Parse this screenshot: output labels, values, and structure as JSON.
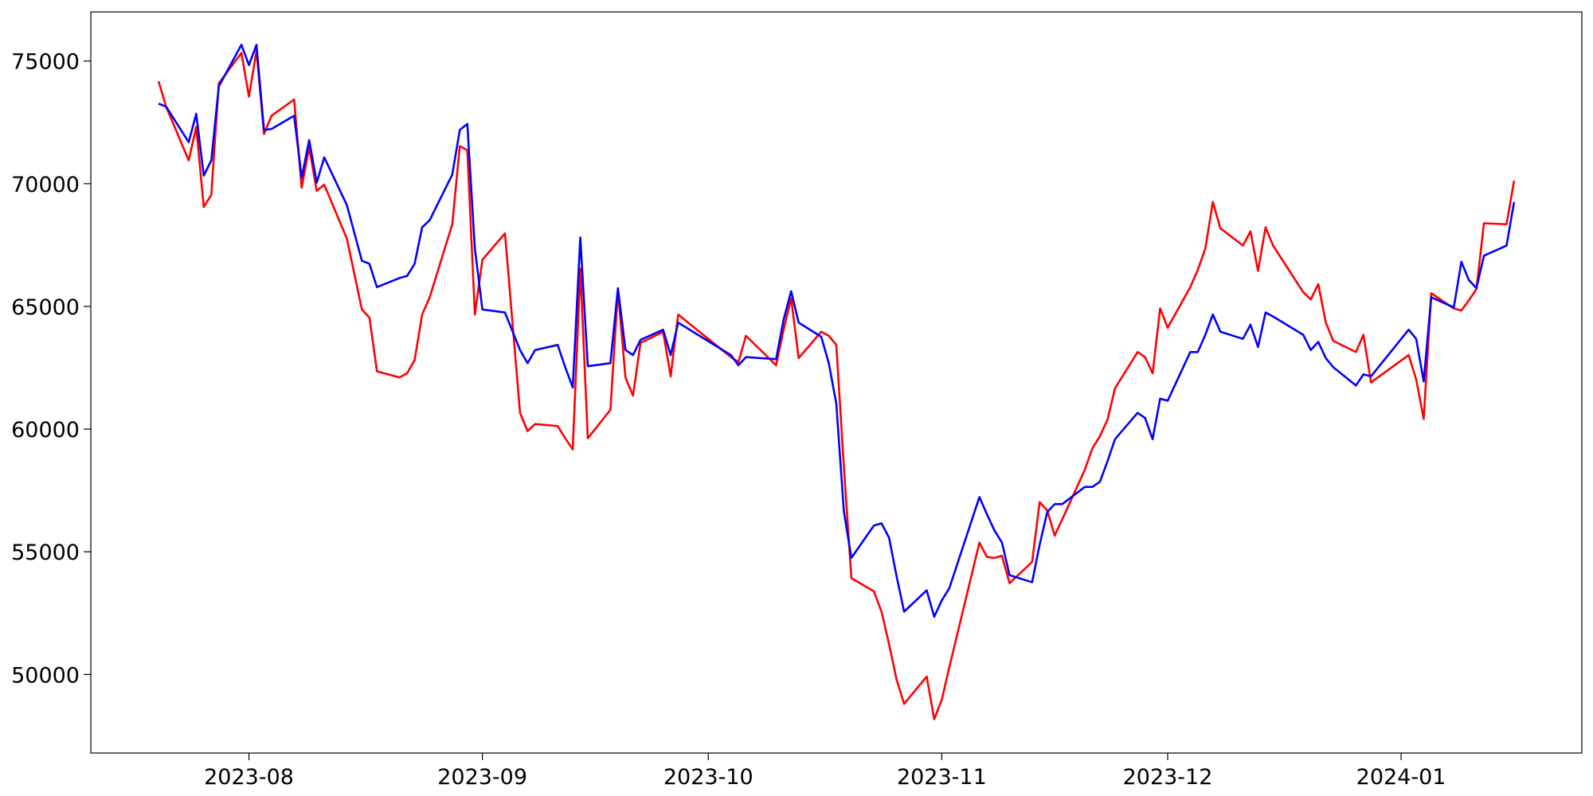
{
  "chart_data": {
    "type": "line",
    "x": [
      -12,
      -11,
      -8,
      -7,
      -6,
      -5,
      -4,
      -1,
      0,
      1,
      2,
      3,
      6,
      7,
      8,
      9,
      10,
      13,
      15,
      16,
      17,
      20,
      21,
      22,
      23,
      24,
      27,
      28,
      29,
      30,
      31,
      34,
      36,
      37,
      38,
      41,
      42,
      43,
      44,
      45,
      48,
      49,
      50,
      51,
      52,
      55,
      56,
      57,
      64,
      65,
      66,
      70,
      71,
      72,
      73,
      76,
      77,
      78,
      79,
      80,
      83,
      84,
      85,
      86,
      87,
      90,
      91,
      92,
      93,
      97,
      98,
      99,
      100,
      101,
      104,
      105,
      106,
      107,
      108,
      111,
      112,
      113,
      114,
      115,
      118,
      119,
      120,
      121,
      122,
      125,
      126,
      127,
      128,
      129,
      132,
      133,
      134,
      135,
      136,
      140,
      141,
      142,
      143,
      144,
      147,
      148,
      149,
      154,
      155,
      156,
      157,
      160,
      161,
      162,
      163,
      164,
      167,
      168
    ],
    "series": [
      {
        "color": "#ff0000",
        "values": [
          74174,
          73140,
          70950,
          72314,
          69050,
          69545,
          74090,
          75330,
          73554,
          75413,
          72025,
          72769,
          73430,
          69835,
          71488,
          69711,
          69959,
          67769,
          64876,
          64545,
          62355,
          62107,
          62273,
          62810,
          64669,
          65372,
          68347,
          71529,
          71364,
          64669,
          66901,
          67975,
          60661,
          59917,
          60207,
          60124,
          59628,
          59174,
          66529,
          59628,
          60785,
          65661,
          62107,
          61364,
          63512,
          63967,
          62149,
          64669,
          62934,
          62727,
          63802,
          62603,
          64050,
          65331,
          62893,
          63967,
          63802,
          63430,
          58471,
          53926,
          53388,
          52562,
          51240,
          49793,
          48802,
          49917,
          48182,
          48967,
          50289,
          55372,
          54793,
          54752,
          54835,
          53719,
          54587,
          57025,
          56694,
          55661,
          56322,
          58347,
          59215,
          59711,
          60372,
          61653,
          63140,
          62934,
          62273,
          64917,
          64132,
          65785,
          66488,
          67355,
          69256,
          68182,
          67479,
          68058,
          66446,
          68223,
          67479,
          65579,
          65289,
          65909,
          64339,
          63595,
          63140,
          63843,
          61901,
          63017,
          62025,
          60413,
          65537,
          64917,
          64835,
          65248,
          65702,
          68388,
          68347,
          70124
        ]
      },
      {
        "color": "#0000ff",
        "values": [
          73264,
          73140,
          71694,
          72850,
          70330,
          70950,
          73967,
          75661,
          74835,
          75661,
          72190,
          72231,
          72769,
          70248,
          71777,
          70041,
          71074,
          69132,
          66860,
          66736,
          65785,
          66157,
          66240,
          66736,
          68223,
          68512,
          70372,
          72190,
          72438,
          67355,
          64876,
          64752,
          63223,
          62686,
          63223,
          63430,
          62521,
          61694,
          67810,
          62562,
          62686,
          65744,
          63223,
          63017,
          63636,
          64050,
          63017,
          64339,
          63017,
          62603,
          62934,
          62851,
          64463,
          65620,
          64339,
          63760,
          62686,
          61033,
          56653,
          54752,
          56074,
          56157,
          55579,
          54008,
          52562,
          53430,
          52355,
          53017,
          53512,
          57231,
          56529,
          55868,
          55372,
          54050,
          53760,
          55289,
          56612,
          56942,
          56942,
          57645,
          57645,
          57851,
          58678,
          59587,
          60661,
          60455,
          59587,
          61240,
          61157,
          63140,
          63140,
          63843,
          64669,
          63967,
          63678,
          64256,
          63347,
          64752,
          64587,
          63843,
          63223,
          63554,
          62893,
          62521,
          61777,
          62231,
          62149,
          64050,
          63678,
          61942,
          65372,
          64959,
          66818,
          66074,
          65744,
          67066,
          67479,
          69256
        ]
      }
    ],
    "xlim": [
      -21,
      177
    ],
    "xticks": [
      {
        "value": 0,
        "label": "2023-08"
      },
      {
        "value": 31,
        "label": "2023-09"
      },
      {
        "value": 61,
        "label": "2023-10"
      },
      {
        "value": 92,
        "label": "2023-11"
      },
      {
        "value": 122,
        "label": "2023-12"
      },
      {
        "value": 153,
        "label": "2024-01"
      }
    ],
    "ylim": [
      46800,
      77000
    ],
    "yticks": [
      50000,
      55000,
      60000,
      65000,
      70000,
      75000
    ]
  }
}
